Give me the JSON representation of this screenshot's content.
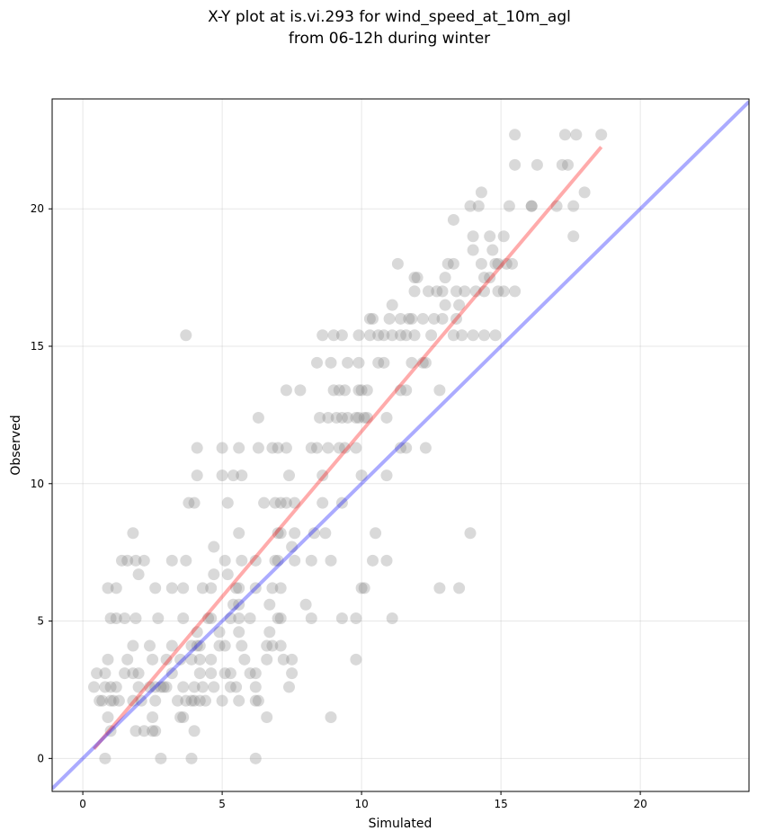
{
  "chart_data": {
    "type": "scatter",
    "title_line1": "X-Y plot at is.vi.293 for wind_speed_at_10m_agl",
    "title_line2": "from 06-12h during winter",
    "xlabel": "Simulated",
    "ylabel": "Observed",
    "xlim": [
      -1.1,
      23.9
    ],
    "ylim": [
      -1.2,
      24.0
    ],
    "xticks": [
      0,
      5,
      10,
      15,
      20
    ],
    "yticks": [
      0,
      5,
      10,
      15,
      20
    ],
    "grid": true,
    "colors": {
      "points": "#808080",
      "fit_line": "#ff0000",
      "identity_line": "#0000ff"
    },
    "identity_line": {
      "x": [
        -1.1,
        23.9
      ],
      "y": [
        -1.1,
        23.9
      ]
    },
    "fit_line": {
      "x": [
        0.4,
        18.6
      ],
      "y": [
        0.35,
        22.25
      ]
    },
    "points": [
      [
        0.8,
        0.0
      ],
      [
        2.8,
        0.0
      ],
      [
        3.9,
        0.0
      ],
      [
        6.2,
        0.0
      ],
      [
        1.0,
        1.0
      ],
      [
        1.9,
        1.0
      ],
      [
        2.2,
        1.0
      ],
      [
        2.5,
        1.0
      ],
      [
        2.6,
        1.0
      ],
      [
        4.0,
        1.0
      ],
      [
        0.9,
        1.5
      ],
      [
        2.5,
        1.5
      ],
      [
        3.5,
        1.5
      ],
      [
        3.6,
        1.5
      ],
      [
        6.6,
        1.5
      ],
      [
        8.9,
        1.5
      ],
      [
        0.6,
        2.1
      ],
      [
        0.7,
        2.1
      ],
      [
        1.0,
        2.1
      ],
      [
        1.1,
        2.1
      ],
      [
        1.3,
        2.1
      ],
      [
        1.8,
        2.1
      ],
      [
        2.1,
        2.1
      ],
      [
        2.6,
        2.1
      ],
      [
        3.4,
        2.1
      ],
      [
        3.7,
        2.1
      ],
      [
        3.9,
        2.1
      ],
      [
        4.0,
        2.1
      ],
      [
        4.2,
        2.1
      ],
      [
        4.4,
        2.1
      ],
      [
        5.0,
        2.1
      ],
      [
        5.6,
        2.1
      ],
      [
        6.2,
        2.1
      ],
      [
        6.3,
        2.1
      ],
      [
        0.4,
        2.6
      ],
      [
        0.8,
        2.6
      ],
      [
        1.0,
        2.6
      ],
      [
        1.2,
        2.6
      ],
      [
        2.0,
        2.6
      ],
      [
        2.4,
        2.6
      ],
      [
        2.6,
        2.6
      ],
      [
        2.8,
        2.6
      ],
      [
        2.9,
        2.6
      ],
      [
        3.0,
        2.6
      ],
      [
        3.6,
        2.6
      ],
      [
        4.0,
        2.6
      ],
      [
        4.3,
        2.6
      ],
      [
        4.7,
        2.6
      ],
      [
        5.3,
        2.6
      ],
      [
        5.5,
        2.6
      ],
      [
        6.2,
        2.6
      ],
      [
        7.4,
        2.6
      ],
      [
        0.5,
        3.1
      ],
      [
        0.8,
        3.1
      ],
      [
        1.5,
        3.1
      ],
      [
        1.8,
        3.1
      ],
      [
        2.0,
        3.1
      ],
      [
        3.2,
        3.1
      ],
      [
        4.2,
        3.1
      ],
      [
        4.6,
        3.1
      ],
      [
        5.1,
        3.1
      ],
      [
        5.3,
        3.1
      ],
      [
        6.0,
        3.1
      ],
      [
        6.2,
        3.1
      ],
      [
        7.5,
        3.1
      ],
      [
        0.9,
        3.6
      ],
      [
        1.6,
        3.6
      ],
      [
        2.5,
        3.6
      ],
      [
        3.0,
        3.6
      ],
      [
        3.5,
        3.6
      ],
      [
        3.9,
        3.6
      ],
      [
        4.2,
        3.6
      ],
      [
        4.6,
        3.6
      ],
      [
        5.8,
        3.6
      ],
      [
        6.6,
        3.6
      ],
      [
        7.2,
        3.6
      ],
      [
        7.5,
        3.6
      ],
      [
        9.8,
        3.6
      ],
      [
        1.8,
        4.1
      ],
      [
        2.4,
        4.1
      ],
      [
        3.2,
        4.1
      ],
      [
        3.9,
        4.1
      ],
      [
        4.1,
        4.1
      ],
      [
        4.2,
        4.1
      ],
      [
        4.9,
        4.1
      ],
      [
        5.1,
        4.1
      ],
      [
        5.7,
        4.1
      ],
      [
        6.6,
        4.1
      ],
      [
        6.8,
        4.1
      ],
      [
        7.1,
        4.1
      ],
      [
        4.1,
        4.6
      ],
      [
        4.9,
        4.6
      ],
      [
        5.6,
        4.6
      ],
      [
        6.7,
        4.6
      ],
      [
        1.0,
        5.1
      ],
      [
        1.2,
        5.1
      ],
      [
        1.5,
        5.1
      ],
      [
        1.9,
        5.1
      ],
      [
        2.7,
        5.1
      ],
      [
        3.6,
        5.1
      ],
      [
        4.5,
        5.1
      ],
      [
        4.6,
        5.1
      ],
      [
        5.3,
        5.1
      ],
      [
        5.6,
        5.1
      ],
      [
        6.0,
        5.1
      ],
      [
        7.0,
        5.1
      ],
      [
        7.1,
        5.1
      ],
      [
        8.2,
        5.1
      ],
      [
        9.3,
        5.1
      ],
      [
        9.8,
        5.1
      ],
      [
        11.1,
        5.1
      ],
      [
        5.4,
        5.6
      ],
      [
        5.6,
        5.6
      ],
      [
        6.7,
        5.6
      ],
      [
        8.0,
        5.6
      ],
      [
        0.9,
        6.2
      ],
      [
        1.2,
        6.2
      ],
      [
        2.6,
        6.2
      ],
      [
        3.2,
        6.2
      ],
      [
        3.6,
        6.2
      ],
      [
        4.3,
        6.2
      ],
      [
        4.6,
        6.2
      ],
      [
        5.5,
        6.2
      ],
      [
        5.6,
        6.2
      ],
      [
        6.2,
        6.2
      ],
      [
        6.8,
        6.2
      ],
      [
        7.1,
        6.2
      ],
      [
        10.0,
        6.2
      ],
      [
        10.1,
        6.2
      ],
      [
        12.8,
        6.2
      ],
      [
        13.5,
        6.2
      ],
      [
        2.0,
        6.7
      ],
      [
        4.7,
        6.7
      ],
      [
        5.2,
        6.7
      ],
      [
        1.4,
        7.2
      ],
      [
        1.6,
        7.2
      ],
      [
        1.9,
        7.2
      ],
      [
        2.2,
        7.2
      ],
      [
        3.2,
        7.2
      ],
      [
        3.7,
        7.2
      ],
      [
        5.1,
        7.2
      ],
      [
        5.7,
        7.2
      ],
      [
        6.2,
        7.2
      ],
      [
        6.9,
        7.2
      ],
      [
        7.0,
        7.2
      ],
      [
        7.6,
        7.2
      ],
      [
        8.2,
        7.2
      ],
      [
        8.9,
        7.2
      ],
      [
        10.4,
        7.2
      ],
      [
        10.9,
        7.2
      ],
      [
        4.7,
        7.7
      ],
      [
        7.5,
        7.7
      ],
      [
        1.8,
        8.2
      ],
      [
        5.6,
        8.2
      ],
      [
        7.0,
        8.2
      ],
      [
        7.1,
        8.2
      ],
      [
        7.6,
        8.2
      ],
      [
        8.3,
        8.2
      ],
      [
        8.7,
        8.2
      ],
      [
        10.5,
        8.2
      ],
      [
        13.9,
        8.2
      ],
      [
        3.8,
        9.3
      ],
      [
        4.0,
        9.3
      ],
      [
        5.2,
        9.3
      ],
      [
        6.5,
        9.3
      ],
      [
        6.9,
        9.3
      ],
      [
        7.1,
        9.3
      ],
      [
        7.3,
        9.3
      ],
      [
        7.6,
        9.3
      ],
      [
        8.6,
        9.3
      ],
      [
        9.3,
        9.3
      ],
      [
        4.1,
        10.3
      ],
      [
        5.0,
        10.3
      ],
      [
        5.4,
        10.3
      ],
      [
        5.7,
        10.3
      ],
      [
        7.4,
        10.3
      ],
      [
        8.6,
        10.3
      ],
      [
        10.0,
        10.3
      ],
      [
        10.9,
        10.3
      ],
      [
        4.1,
        11.3
      ],
      [
        5.0,
        11.3
      ],
      [
        5.6,
        11.3
      ],
      [
        6.3,
        11.3
      ],
      [
        6.8,
        11.3
      ],
      [
        7.0,
        11.3
      ],
      [
        7.3,
        11.3
      ],
      [
        8.2,
        11.3
      ],
      [
        8.4,
        11.3
      ],
      [
        8.8,
        11.3
      ],
      [
        9.2,
        11.3
      ],
      [
        9.4,
        11.3
      ],
      [
        9.8,
        11.3
      ],
      [
        11.4,
        11.3
      ],
      [
        11.6,
        11.3
      ],
      [
        12.3,
        11.3
      ],
      [
        6.3,
        12.4
      ],
      [
        8.5,
        12.4
      ],
      [
        8.8,
        12.4
      ],
      [
        9.1,
        12.4
      ],
      [
        9.3,
        12.4
      ],
      [
        9.5,
        12.4
      ],
      [
        9.8,
        12.4
      ],
      [
        9.9,
        12.4
      ],
      [
        10.1,
        12.4
      ],
      [
        10.2,
        12.4
      ],
      [
        10.9,
        12.4
      ],
      [
        7.3,
        13.4
      ],
      [
        7.8,
        13.4
      ],
      [
        9.0,
        13.4
      ],
      [
        9.2,
        13.4
      ],
      [
        9.4,
        13.4
      ],
      [
        9.9,
        13.4
      ],
      [
        10.0,
        13.4
      ],
      [
        10.2,
        13.4
      ],
      [
        11.4,
        13.4
      ],
      [
        11.6,
        13.4
      ],
      [
        12.8,
        13.4
      ],
      [
        8.4,
        14.4
      ],
      [
        8.9,
        14.4
      ],
      [
        9.5,
        14.4
      ],
      [
        9.9,
        14.4
      ],
      [
        10.6,
        14.4
      ],
      [
        10.8,
        14.4
      ],
      [
        11.8,
        14.4
      ],
      [
        12.2,
        14.4
      ],
      [
        12.3,
        14.4
      ],
      [
        3.7,
        15.4
      ],
      [
        8.6,
        15.4
      ],
      [
        9.0,
        15.4
      ],
      [
        9.3,
        15.4
      ],
      [
        9.9,
        15.4
      ],
      [
        10.3,
        15.4
      ],
      [
        10.6,
        15.4
      ],
      [
        10.8,
        15.4
      ],
      [
        11.1,
        15.4
      ],
      [
        11.4,
        15.4
      ],
      [
        11.6,
        15.4
      ],
      [
        11.9,
        15.4
      ],
      [
        12.5,
        15.4
      ],
      [
        13.3,
        15.4
      ],
      [
        13.6,
        15.4
      ],
      [
        14.0,
        15.4
      ],
      [
        14.4,
        15.4
      ],
      [
        14.8,
        15.4
      ],
      [
        10.3,
        16.0
      ],
      [
        10.4,
        16.0
      ],
      [
        11.0,
        16.0
      ],
      [
        11.4,
        16.0
      ],
      [
        11.7,
        16.0
      ],
      [
        11.8,
        16.0
      ],
      [
        12.2,
        16.0
      ],
      [
        12.6,
        16.0
      ],
      [
        12.9,
        16.0
      ],
      [
        13.4,
        16.0
      ],
      [
        11.1,
        16.5
      ],
      [
        13.0,
        16.5
      ],
      [
        13.5,
        16.5
      ],
      [
        11.9,
        17.0
      ],
      [
        12.4,
        17.0
      ],
      [
        12.7,
        17.0
      ],
      [
        12.9,
        17.0
      ],
      [
        13.4,
        17.0
      ],
      [
        13.7,
        17.0
      ],
      [
        14.1,
        17.0
      ],
      [
        14.4,
        17.0
      ],
      [
        14.9,
        17.0
      ],
      [
        15.1,
        17.0
      ],
      [
        15.5,
        17.0
      ],
      [
        11.9,
        17.5
      ],
      [
        12.0,
        17.5
      ],
      [
        13.0,
        17.5
      ],
      [
        14.4,
        17.5
      ],
      [
        14.6,
        17.5
      ],
      [
        11.3,
        18.0
      ],
      [
        13.1,
        18.0
      ],
      [
        13.3,
        18.0
      ],
      [
        14.3,
        18.0
      ],
      [
        14.8,
        18.0
      ],
      [
        14.9,
        18.0
      ],
      [
        15.2,
        18.0
      ],
      [
        15.4,
        18.0
      ],
      [
        14.0,
        18.5
      ],
      [
        14.7,
        18.5
      ],
      [
        14.0,
        19.0
      ],
      [
        14.6,
        19.0
      ],
      [
        15.1,
        19.0
      ],
      [
        17.6,
        19.0
      ],
      [
        13.3,
        19.6
      ],
      [
        13.9,
        20.1
      ],
      [
        14.2,
        20.1
      ],
      [
        15.3,
        20.1
      ],
      [
        16.1,
        20.1
      ],
      [
        16.1,
        20.1
      ],
      [
        17.0,
        20.1
      ],
      [
        17.6,
        20.1
      ],
      [
        14.3,
        20.6
      ],
      [
        18.0,
        20.6
      ],
      [
        15.5,
        21.6
      ],
      [
        16.3,
        21.6
      ],
      [
        17.2,
        21.6
      ],
      [
        17.4,
        21.6
      ],
      [
        15.5,
        22.7
      ],
      [
        17.3,
        22.7
      ],
      [
        17.7,
        22.7
      ],
      [
        18.6,
        22.7
      ]
    ]
  }
}
